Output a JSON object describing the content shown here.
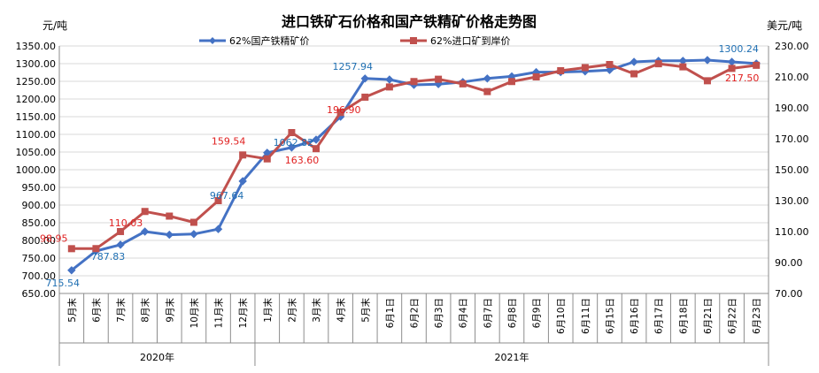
{
  "chart_data": {
    "type": "line",
    "title": "进口铁矿石价格和国产铁精矿价格走势图",
    "y_left_unit": "元/吨",
    "y_right_unit": "美元/吨",
    "ylim_left": [
      650,
      1350
    ],
    "ylim_right": [
      70,
      230
    ],
    "yticks_left": [
      "650.00",
      "700.00",
      "750.00",
      "800.00",
      "850.00",
      "900.00",
      "950.00",
      "1000.00",
      "1050.00",
      "1100.00",
      "1150.00",
      "1200.00",
      "1250.00",
      "1300.00",
      "1350.00"
    ],
    "yticks_right": [
      "70.00",
      "90.00",
      "110.00",
      "130.00",
      "150.00",
      "170.00",
      "190.00",
      "210.00",
      "230.00"
    ],
    "grid": true,
    "legend_position": "top",
    "categories": [
      "5月末",
      "6月末",
      "7月末",
      "8月末",
      "9月末",
      "10月末",
      "11月末",
      "12月末",
      "1月末",
      "2月末",
      "3月末",
      "4月末",
      "5月末",
      "6月1日",
      "6月2日",
      "6月3日",
      "6月4日",
      "6月7日",
      "6月8日",
      "6月9日",
      "6月10日",
      "6月11日",
      "6月15日",
      "6月16日",
      "6月17日",
      "6月18日",
      "6月21日",
      "6月22日",
      "6月23日"
    ],
    "year_groups": [
      {
        "label": "2020年",
        "start": 0,
        "end": 7
      },
      {
        "label": "2021年",
        "start": 8,
        "end": 28
      }
    ],
    "series": [
      {
        "name": "62%国产铁精矿价",
        "axis": "left",
        "color": "#4472c4",
        "marker": "diamond",
        "values": [
          715.54,
          770,
          787.83,
          825,
          816,
          818,
          832,
          967.64,
          1048,
          1062.82,
          1085,
          1150,
          1257.94,
          1255,
          1240,
          1242,
          1248,
          1258,
          1264,
          1276,
          1276,
          1278,
          1282,
          1305,
          1308,
          1308,
          1310,
          1305,
          1300.24
        ],
        "labels": [
          {
            "index": 0,
            "text": "715.54"
          },
          {
            "index": 2,
            "text": "787.83"
          },
          {
            "index": 7,
            "text": "967.64"
          },
          {
            "index": 9,
            "text": "1062.82"
          },
          {
            "index": 12,
            "text": "1257.94"
          },
          {
            "index": 28,
            "text": "1300.24"
          }
        ]
      },
      {
        "name": "62%进口矿到岸价",
        "axis": "right",
        "color": "#c0504d",
        "marker": "square",
        "values": [
          98.95,
          99,
          110.03,
          123,
          120,
          116,
          130,
          159.54,
          157,
          174,
          163.6,
          187,
          196.9,
          203.5,
          207,
          208.5,
          205.5,
          200.5,
          207,
          210,
          214,
          216,
          218,
          212,
          218.5,
          216.5,
          207.5,
          215.5,
          217.5
        ],
        "labels": [
          {
            "index": 0,
            "text": "98.95"
          },
          {
            "index": 2,
            "text": "110.03"
          },
          {
            "index": 7,
            "text": "159.54"
          },
          {
            "index": 10,
            "text": "163.60"
          },
          {
            "index": 12,
            "text": "196.90"
          },
          {
            "index": 28,
            "text": "217.50"
          }
        ]
      }
    ]
  }
}
